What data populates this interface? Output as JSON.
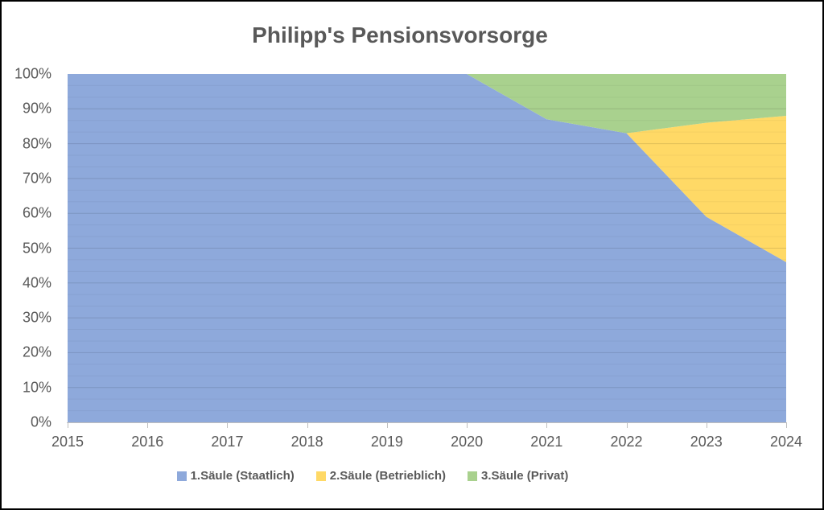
{
  "chart_data": {
    "type": "area",
    "stacking": "100%",
    "title": "Philipp's Pensionsvorsorge",
    "x": [
      2015,
      2016,
      2017,
      2018,
      2019,
      2020,
      2021,
      2022,
      2023,
      2024
    ],
    "series": [
      {
        "name": "1.Säule (Staatlich)",
        "color": "#8EA9DB",
        "values": [
          100,
          100,
          100,
          100,
          100,
          100,
          87,
          83,
          59,
          46
        ]
      },
      {
        "name": "2.Säule (Betrieblich)",
        "color": "#FFD966",
        "values": [
          0,
          0,
          0,
          0,
          0,
          0,
          0,
          0,
          27,
          42
        ]
      },
      {
        "name": "3.Säule (Privat)",
        "color": "#A9D18E",
        "values": [
          0,
          0,
          0,
          0,
          0,
          0,
          13,
          17,
          14,
          12
        ]
      }
    ],
    "xlabel": "",
    "ylabel": "",
    "ylim": [
      0,
      100
    ],
    "y_ticks": [
      "0%",
      "10%",
      "20%",
      "30%",
      "40%",
      "50%",
      "60%",
      "70%",
      "80%",
      "90%",
      "100%"
    ],
    "grid": "horizontal-major-every-10pct",
    "legend_position": "bottom"
  },
  "styles": {
    "title_color": "#595959",
    "axis_text_color": "#595959",
    "axis_line_color": "#BFBFBF",
    "frame_border_color": "#000000",
    "background": "#ffffff"
  }
}
